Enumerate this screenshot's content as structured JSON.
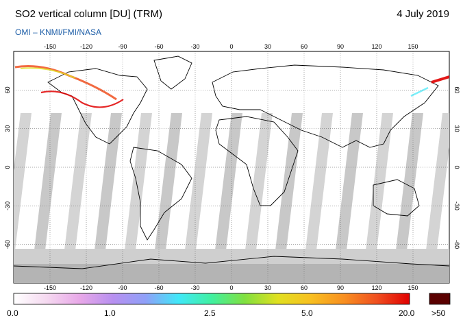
{
  "header": {
    "title": "SO2 vertical column [DU] (TRM)",
    "date": "4 July 2019",
    "subtitle": "OMI  –  KNMI/FMI/NASA"
  },
  "map": {
    "lon_ticks": [
      "-150",
      "-120",
      "-90",
      "-60",
      "-30",
      "0",
      "30",
      "60",
      "90",
      "120",
      "150"
    ],
    "lat_ticks_left": [
      "60",
      "30",
      "0",
      "-30",
      "-60"
    ],
    "lat_ticks_right": [
      "60",
      "30",
      "0",
      "-30",
      "-60"
    ]
  },
  "colorbar": {
    "labels": [
      "0.0",
      "1.0",
      "2.5",
      "5.0",
      "20.0"
    ],
    "overflow_label": ">50",
    "colors": [
      "#ffffff",
      "#f5d9f0",
      "#e8a8e8",
      "#b890f0",
      "#8fa0f8",
      "#40e8f8",
      "#40f0a0",
      "#80e040",
      "#e0e020",
      "#f8c020",
      "#f89020",
      "#f05020",
      "#e00000"
    ],
    "overflow_color": "#5a0000"
  }
}
